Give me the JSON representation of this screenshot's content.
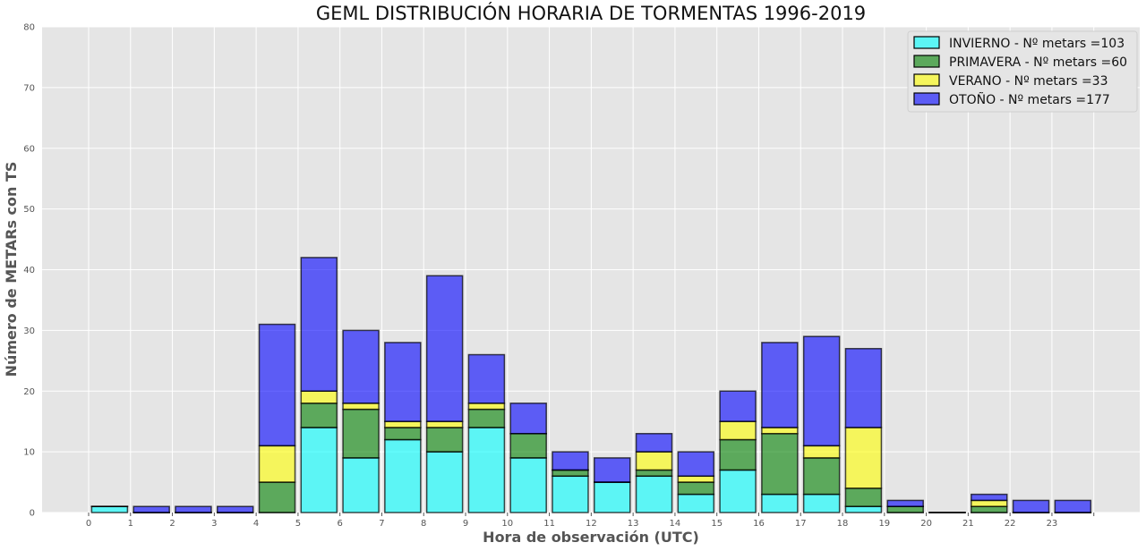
{
  "chart_data": {
    "type": "bar",
    "stacked": true,
    "title": "GEML DISTRIBUCIÓN HORARIA DE TORMENTAS 1996-2019",
    "xlabel": "Hora de observación (UTC)",
    "ylabel": "Número de METARs con TS",
    "ylim": [
      0,
      80
    ],
    "yticks": [
      "0",
      "10",
      "20",
      "30",
      "40",
      "50",
      "60",
      "70",
      "80"
    ],
    "categories": [
      "0",
      "1",
      "2",
      "3",
      "4",
      "5",
      "6",
      "7",
      "8",
      "9",
      "10",
      "11",
      "12",
      "13",
      "14",
      "15",
      "16",
      "17",
      "18",
      "19",
      "20",
      "21",
      "22",
      "23"
    ],
    "grid": true,
    "legend_position": "top-right",
    "series": [
      {
        "name": "INVIERNO - Nº metars =103",
        "color": "#00ffff",
        "values": [
          1,
          0,
          0,
          0,
          0,
          14,
          9,
          12,
          10,
          14,
          9,
          6,
          5,
          6,
          3,
          7,
          3,
          3,
          1,
          0,
          0,
          0,
          0,
          0
        ]
      },
      {
        "name": "PRIMAVERA - Nº metars =60",
        "color": "#008000",
        "values": [
          0,
          0,
          0,
          0,
          5,
          4,
          8,
          2,
          4,
          3,
          4,
          1,
          0,
          1,
          2,
          5,
          10,
          6,
          3,
          1,
          0,
          1,
          0,
          0
        ]
      },
      {
        "name": "VERANO - Nº metars =33",
        "color": "#ffff00",
        "values": [
          0,
          0,
          0,
          0,
          6,
          2,
          1,
          1,
          1,
          1,
          0,
          0,
          0,
          3,
          1,
          3,
          1,
          2,
          10,
          0,
          0,
          1,
          0,
          0
        ]
      },
      {
        "name": "OTOÑO - Nº metars =177",
        "color": "#0000ff",
        "values": [
          0,
          1,
          1,
          1,
          20,
          22,
          12,
          13,
          24,
          8,
          5,
          3,
          4,
          3,
          4,
          5,
          14,
          18,
          13,
          1,
          0,
          1,
          2,
          2
        ]
      }
    ]
  }
}
